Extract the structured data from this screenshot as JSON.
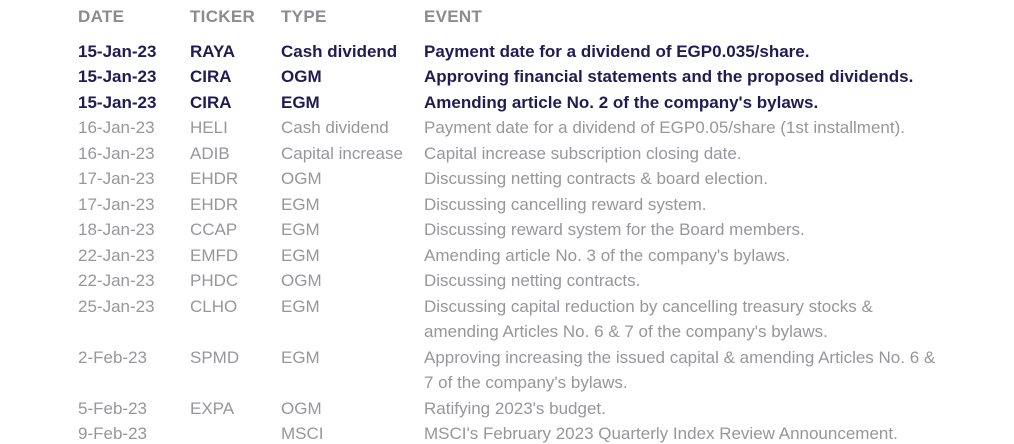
{
  "colors": {
    "header_text": "#8b8b90",
    "body_text": "#97969a",
    "highlight_text": "#211b55",
    "background": "#ffffff"
  },
  "table": {
    "columns": [
      "DATE",
      "TICKER",
      "TYPE",
      "EVENT"
    ],
    "rows": [
      {
        "date": "15-Jan-23",
        "ticker": "RAYA",
        "type": "Cash dividend",
        "event": "Payment date for a dividend of EGP0.035/share.",
        "bold": true
      },
      {
        "date": "15-Jan-23",
        "ticker": "CIRA",
        "type": "OGM",
        "event": "Approving financial statements and the proposed dividends.",
        "bold": true
      },
      {
        "date": "15-Jan-23",
        "ticker": "CIRA",
        "type": "EGM",
        "event": "Amending article No. 2 of the company's bylaws.",
        "bold": true
      },
      {
        "date": "16-Jan-23",
        "ticker": "HELI",
        "type": "Cash dividend",
        "event": "Payment date for a dividend of EGP0.05/share (1st installment).",
        "bold": false
      },
      {
        "date": "16-Jan-23",
        "ticker": "ADIB",
        "type": "Capital increase",
        "event": "Capital increase subscription closing date.",
        "bold": false
      },
      {
        "date": "17-Jan-23",
        "ticker": "EHDR",
        "type": "OGM",
        "event": "Discussing netting contracts & board election.",
        "bold": false
      },
      {
        "date": "17-Jan-23",
        "ticker": "EHDR",
        "type": "EGM",
        "event": "Discussing cancelling reward system.",
        "bold": false
      },
      {
        "date": "18-Jan-23",
        "ticker": "CCAP",
        "type": "EGM",
        "event": "Discussing reward system for the Board members.",
        "bold": false
      },
      {
        "date": "22-Jan-23",
        "ticker": "EMFD",
        "type": "EGM",
        "event": "Amending article No. 3 of the company's bylaws.",
        "bold": false
      },
      {
        "date": "22-Jan-23",
        "ticker": "PHDC",
        "type": "OGM",
        "event": "Discussing netting contracts.",
        "bold": false
      },
      {
        "date": "25-Jan-23",
        "ticker": "CLHO",
        "type": "EGM",
        "event": "Discussing capital reduction by cancelling treasury stocks &\namending Articles No. 6 & 7 of the company's bylaws.",
        "bold": false
      },
      {
        "date": "2-Feb-23",
        "ticker": "SPMD",
        "type": "EGM",
        "event": "Approving increasing the issued capital & amending Articles No. 6 &\n7 of the company's bylaws.",
        "bold": false
      },
      {
        "date": "5-Feb-23",
        "ticker": "EXPA",
        "type": "OGM",
        "event": "Ratifying 2023's budget.",
        "bold": false
      },
      {
        "date": "9-Feb-23",
        "ticker": "",
        "type": "MSCI",
        "event": "MSCI's February 2023 Quarterly Index Review Announcement.",
        "bold": false
      }
    ]
  }
}
